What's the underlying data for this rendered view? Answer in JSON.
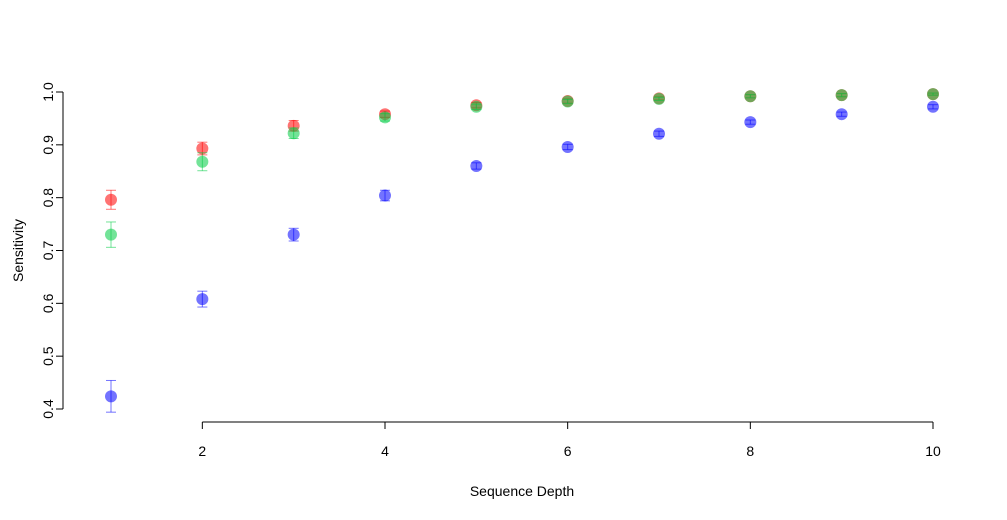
{
  "chart_data": {
    "type": "scatter",
    "title": "",
    "xlabel": "Sequence Depth",
    "ylabel": "Sensitivity",
    "xlim": [
      1,
      10
    ],
    "ylim": [
      0.4,
      1.0
    ],
    "x_ticks": [
      2,
      4,
      6,
      8,
      10
    ],
    "y_ticks": [
      0.4,
      0.5,
      0.6,
      0.7,
      0.8,
      0.9,
      1.0
    ],
    "y_tick_labels": [
      "0.4",
      "0.5",
      "0.6",
      "0.7",
      "0.8",
      "0.9",
      "1.0"
    ],
    "grid": false,
    "legend": "none",
    "series": [
      {
        "color": "#FF0000",
        "x": [
          1,
          2,
          3,
          4,
          5,
          6,
          7,
          8,
          9,
          10
        ],
        "y": [
          0.796,
          0.893,
          0.936,
          0.958,
          0.975,
          0.983,
          0.988,
          0.992,
          0.994,
          0.996
        ],
        "err": [
          0.018,
          0.012,
          0.01,
          0.006,
          0.005,
          0.004,
          0.003,
          0.003,
          0.003,
          0.002
        ]
      },
      {
        "color": "#00CC44",
        "x": [
          1,
          2,
          3,
          4,
          5,
          6,
          7,
          8,
          9,
          10
        ],
        "y": [
          0.73,
          0.868,
          0.922,
          0.952,
          0.972,
          0.982,
          0.987,
          0.992,
          0.994,
          0.996
        ],
        "err": [
          0.024,
          0.017,
          0.01,
          0.007,
          0.005,
          0.004,
          0.003,
          0.003,
          0.003,
          0.002
        ]
      },
      {
        "color": "#0000FF",
        "x": [
          1,
          2,
          3,
          4,
          5,
          6,
          7,
          8,
          9,
          10
        ],
        "y": [
          0.424,
          0.608,
          0.73,
          0.804,
          0.86,
          0.896,
          0.921,
          0.943,
          0.958,
          0.972
        ],
        "err": [
          0.03,
          0.015,
          0.012,
          0.01,
          0.006,
          0.005,
          0.005,
          0.004,
          0.004,
          0.004
        ]
      }
    ]
  }
}
